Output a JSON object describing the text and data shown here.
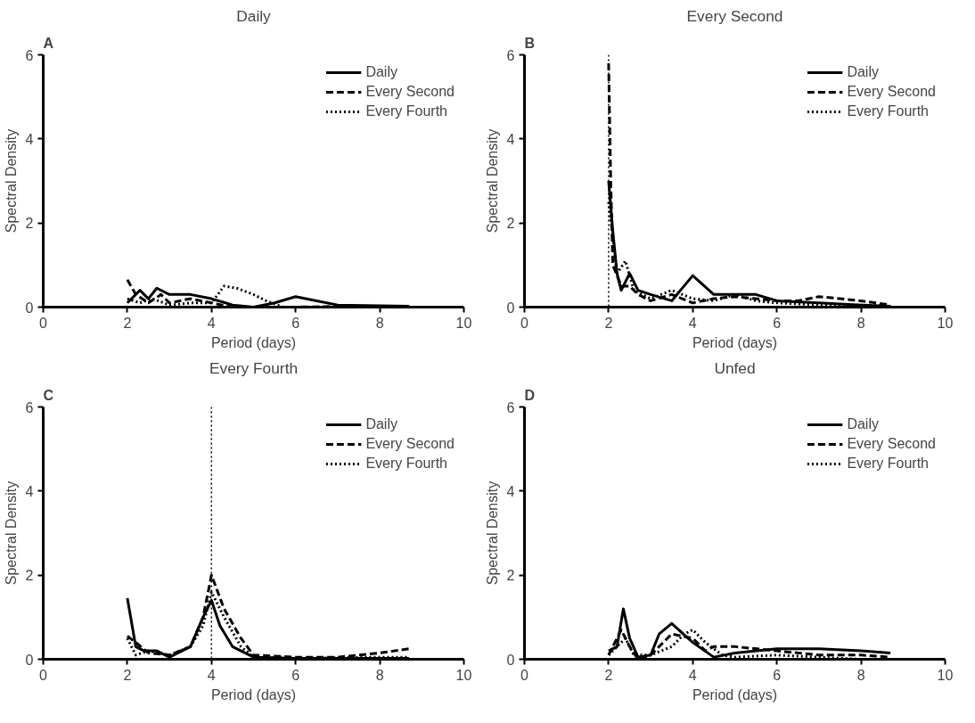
{
  "chart_data": [
    {
      "type": "line",
      "title": "Daily",
      "annotations": [
        "A"
      ],
      "xlabel": "Period (days)",
      "ylabel": "Spectral Density",
      "xlim": [
        0,
        10
      ],
      "ylim": [
        0,
        6
      ],
      "xticks": [
        0,
        2,
        4,
        6,
        8,
        10
      ],
      "yticks": [
        0,
        2,
        4,
        6
      ],
      "grid": false,
      "legend": "top right",
      "marker": "none",
      "series": [
        {
          "name": "Daily",
          "color": "#000000",
          "line_style": "solid",
          "x": [
            2,
            2.3,
            2.5,
            2.7,
            3.0,
            3.5,
            4.0,
            4.5,
            5.0,
            5.5,
            6.0,
            6.5,
            7.0,
            8.0,
            8.7
          ],
          "values": [
            0.1,
            0.4,
            0.2,
            0.45,
            0.3,
            0.3,
            0.2,
            0.05,
            0.0,
            0.1,
            0.25,
            0.15,
            0.05,
            0.03,
            0.02
          ]
        },
        {
          "name": "Every Second",
          "color": "#000000",
          "line_style": "dashed",
          "x": [
            2,
            2.2,
            2.5,
            2.8,
            3.0,
            3.5,
            4.0,
            4.5,
            5.0,
            6.0,
            7.0,
            8.0,
            8.7
          ],
          "values": [
            0.65,
            0.3,
            0.1,
            0.3,
            0.1,
            0.2,
            0.1,
            0.0,
            0.0,
            0.0,
            0.02,
            0.01,
            0.01
          ]
        },
        {
          "name": "Every Fourth",
          "color": "#000000",
          "line_style": "dotted",
          "x": [
            2,
            2.3,
            2.6,
            3.0,
            3.5,
            4.0,
            4.3,
            4.6,
            5.0,
            5.3,
            5.7,
            6.5,
            8.0,
            8.7
          ],
          "values": [
            0.2,
            0.1,
            0.2,
            0.05,
            0.1,
            0.1,
            0.5,
            0.45,
            0.3,
            0.15,
            0.0,
            0.0,
            0.0,
            0.0
          ]
        }
      ]
    },
    {
      "type": "line",
      "title": "Every Second",
      "annotations": [
        "B"
      ],
      "xlabel": "Period (days)",
      "ylabel": "Spectral Density",
      "xlim": [
        0,
        10
      ],
      "ylim": [
        0,
        6
      ],
      "xticks": [
        0,
        2,
        4,
        6,
        8,
        10
      ],
      "yticks": [
        0,
        2,
        4,
        6
      ],
      "grid": false,
      "legend": "top right",
      "marker": "none",
      "ref_lines": [
        {
          "axis": "x",
          "value": 2,
          "label": null,
          "color": "#000000",
          "line_style": "dotted"
        }
      ],
      "series": [
        {
          "name": "Daily",
          "color": "#000000",
          "line_style": "solid",
          "x": [
            2,
            2.1,
            2.2,
            2.3,
            2.5,
            2.7,
            3.0,
            3.5,
            4.0,
            4.5,
            5.0,
            5.5,
            6.0,
            7.0,
            8.0,
            8.7
          ],
          "values": [
            3.0,
            1.8,
            0.8,
            0.4,
            0.8,
            0.4,
            0.3,
            0.15,
            0.75,
            0.3,
            0.3,
            0.3,
            0.15,
            0.1,
            0.05,
            0.02
          ]
        },
        {
          "name": "Every Second",
          "color": "#000000",
          "line_style": "dashed",
          "x": [
            2,
            2.05,
            2.1,
            2.3,
            2.5,
            2.7,
            3.0,
            3.5,
            4.0,
            4.5,
            5.0,
            5.5,
            6.0,
            6.5,
            7.0,
            7.5,
            8.0,
            8.7
          ],
          "values": [
            5.8,
            3.0,
            1.0,
            0.5,
            0.5,
            0.3,
            0.15,
            0.3,
            0.1,
            0.2,
            0.25,
            0.2,
            0.15,
            0.15,
            0.25,
            0.2,
            0.15,
            0.05
          ]
        },
        {
          "name": "Every Fourth",
          "color": "#000000",
          "line_style": "dotted",
          "x": [
            2,
            2.2,
            2.4,
            2.6,
            3.0,
            3.5,
            4.0,
            4.5,
            5.0,
            5.5,
            6.0,
            7.0,
            8.0,
            8.7
          ],
          "values": [
            2.5,
            0.8,
            1.1,
            0.4,
            0.2,
            0.4,
            0.2,
            0.15,
            0.3,
            0.15,
            0.1,
            0.05,
            0.05,
            0.02
          ]
        }
      ]
    },
    {
      "type": "line",
      "title": "Every Fourth",
      "annotations": [
        "C"
      ],
      "xlabel": "Period (days)",
      "ylabel": "Spectral Density",
      "xlim": [
        0,
        10
      ],
      "ylim": [
        0,
        6
      ],
      "xticks": [
        0,
        2,
        4,
        6,
        8,
        10
      ],
      "yticks": [
        0,
        2,
        4,
        6
      ],
      "grid": false,
      "legend": "top right",
      "marker": "none",
      "ref_lines": [
        {
          "axis": "x",
          "value": 4,
          "label": null,
          "color": "#000000",
          "line_style": "dotted"
        }
      ],
      "series": [
        {
          "name": "Daily",
          "color": "#000000",
          "line_style": "solid",
          "x": [
            2,
            2.2,
            2.4,
            2.7,
            3.0,
            3.5,
            3.8,
            4.0,
            4.2,
            4.5,
            5.0,
            6.0,
            7.0,
            8.0,
            8.7
          ],
          "values": [
            1.45,
            0.3,
            0.2,
            0.2,
            0.05,
            0.3,
            1.0,
            1.4,
            0.8,
            0.3,
            0.05,
            0.02,
            0.02,
            0.02,
            0.02
          ]
        },
        {
          "name": "Every Second",
          "color": "#000000",
          "line_style": "dashed",
          "x": [
            2,
            2.2,
            2.5,
            3.0,
            3.5,
            3.8,
            4.0,
            4.3,
            4.7,
            5.0,
            6.0,
            7.0,
            8.0,
            8.7
          ],
          "values": [
            0.55,
            0.4,
            0.15,
            0.1,
            0.3,
            1.0,
            2.0,
            1.2,
            0.5,
            0.1,
            0.05,
            0.05,
            0.15,
            0.25
          ]
        },
        {
          "name": "Every Fourth",
          "color": "#000000",
          "line_style": "dotted",
          "x": [
            2,
            2.2,
            2.5,
            3.0,
            3.5,
            3.8,
            4.0,
            4.3,
            4.7,
            5.0,
            6.0,
            8.0,
            8.7
          ],
          "values": [
            0.5,
            0.1,
            0.2,
            0.1,
            0.3,
            0.8,
            1.6,
            1.0,
            0.3,
            0.05,
            0.02,
            0.05,
            0.05
          ]
        }
      ]
    },
    {
      "type": "line",
      "title": "Unfed",
      "annotations": [
        "D"
      ],
      "xlabel": "Period (days)",
      "ylabel": "Spectral Density",
      "xlim": [
        0,
        10
      ],
      "ylim": [
        0,
        6
      ],
      "xticks": [
        0,
        2,
        4,
        6,
        8,
        10
      ],
      "yticks": [
        0,
        2,
        4,
        6
      ],
      "grid": false,
      "legend": "top right",
      "marker": "none",
      "series": [
        {
          "name": "Daily",
          "color": "#000000",
          "line_style": "solid",
          "x": [
            2,
            2.2,
            2.35,
            2.5,
            2.7,
            3.0,
            3.2,
            3.5,
            4.0,
            4.5,
            5.0,
            6.0,
            7.0,
            8.0,
            8.7
          ],
          "values": [
            0.2,
            0.3,
            1.2,
            0.5,
            0.05,
            0.1,
            0.6,
            0.85,
            0.4,
            0.05,
            0.15,
            0.25,
            0.25,
            0.2,
            0.15
          ]
        },
        {
          "name": "Every Second",
          "color": "#000000",
          "line_style": "dashed",
          "x": [
            2,
            2.3,
            2.5,
            2.7,
            3.0,
            3.5,
            4.0,
            4.3,
            4.5,
            5.0,
            6.0,
            7.0,
            8.0,
            8.7
          ],
          "values": [
            0.1,
            0.7,
            0.3,
            0.0,
            0.1,
            0.6,
            0.5,
            0.2,
            0.3,
            0.3,
            0.2,
            0.1,
            0.1,
            0.05
          ]
        },
        {
          "name": "Every Fourth",
          "color": "#000000",
          "line_style": "dotted",
          "x": [
            2,
            2.4,
            2.6,
            3.0,
            3.5,
            3.8,
            4.0,
            4.3,
            4.7,
            5.0,
            6.0,
            7.0,
            8.0,
            8.7
          ],
          "values": [
            0.1,
            0.5,
            0.1,
            0.1,
            0.3,
            0.6,
            0.7,
            0.4,
            0.1,
            0.05,
            0.1,
            0.05,
            0.0,
            0.0
          ]
        }
      ]
    }
  ]
}
